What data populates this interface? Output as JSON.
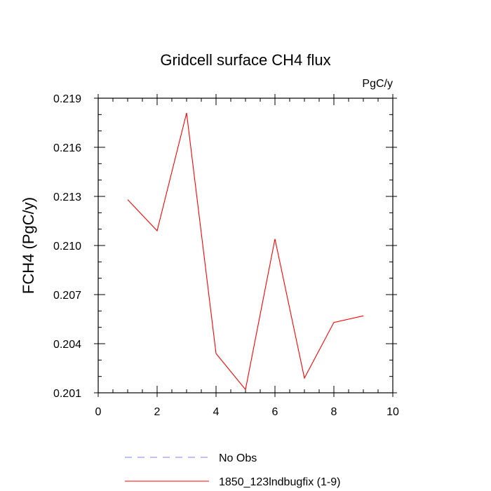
{
  "chart_data": {
    "type": "line",
    "title": "Gridcell surface CH4 flux",
    "units_label": "PgC/y",
    "ylabel": "FCH4  (PgC/y)",
    "xlabel": "",
    "xlim": [
      0,
      10
    ],
    "ylim": [
      0.201,
      0.219
    ],
    "xticks": [
      0,
      2,
      4,
      6,
      8,
      10
    ],
    "xtick_labels": [
      "0",
      "2",
      "4",
      "6",
      "8",
      "10"
    ],
    "yticks": [
      0.201,
      0.204,
      0.207,
      0.21,
      0.213,
      0.216,
      0.219
    ],
    "ytick_labels": [
      "0.201",
      "0.204",
      "0.207",
      "0.210",
      "0.213",
      "0.216",
      "0.219"
    ],
    "grid": false,
    "legend_position": "bottom",
    "series": [
      {
        "name": "No Obs",
        "color": "#8080ff",
        "dash": true,
        "x": [],
        "y": []
      },
      {
        "name": "1850_123lndbugfix (1-9)",
        "color": "#ff0000",
        "dash": false,
        "x": [
          1,
          2,
          3,
          4,
          5,
          6,
          7,
          8,
          9
        ],
        "y": [
          0.2128,
          0.2109,
          0.2181,
          0.2034,
          0.2012,
          0.2104,
          0.2019,
          0.2053,
          0.2057
        ]
      }
    ]
  }
}
